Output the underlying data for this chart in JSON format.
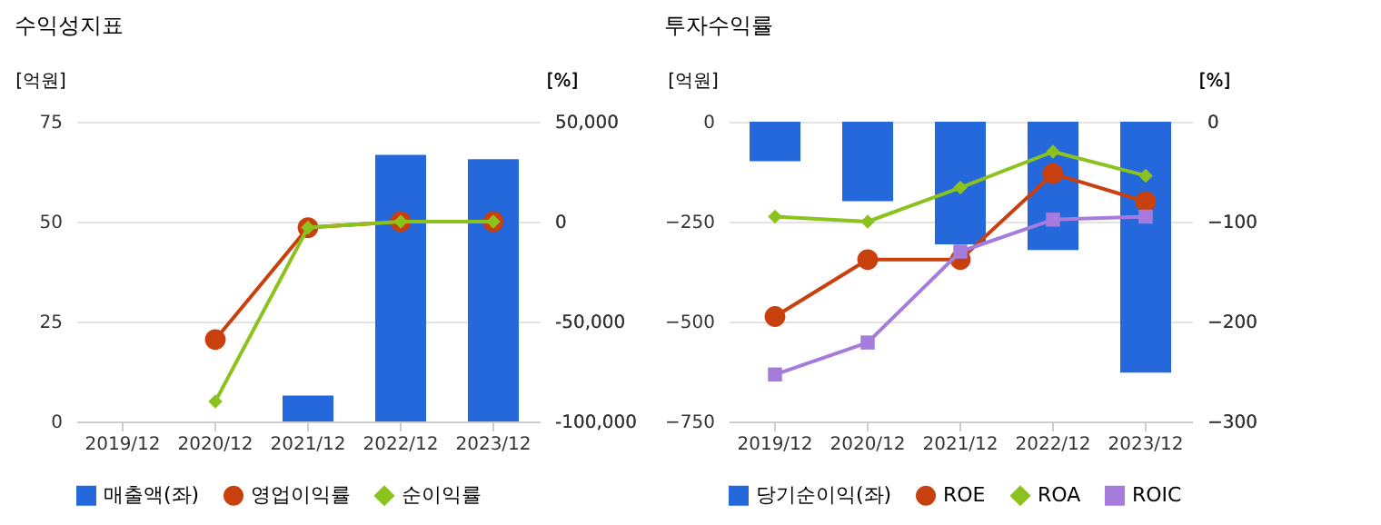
{
  "chart_data": [
    {
      "type": "bar",
      "title": "수익성지표",
      "ylabel": "[억원]",
      "y2label": "[%]",
      "categories": [
        "2019/12",
        "2020/12",
        "2021/12",
        "2022/12",
        "2023/12"
      ],
      "series": [
        {
          "name": "매출액(좌)",
          "color": "#2468dc",
          "values": [
            null,
            null,
            6.5,
            66.7,
            65.6
          ]
        },
        {
          "name": "영업이익률",
          "type": "line",
          "axis": "y2",
          "marker": "circle",
          "color": "#c8400e",
          "values": [
            null,
            -59000,
            -3000,
            0,
            0
          ]
        },
        {
          "name": "순이익률",
          "type": "line",
          "axis": "y2",
          "marker": "diamond",
          "color": "#8cc21e",
          "values": [
            null,
            -90000,
            -3000,
            0,
            0
          ]
        }
      ],
      "ylim": [
        0,
        75
      ],
      "yticks": [
        0,
        25,
        50,
        75
      ],
      "y2lim": [
        -100000,
        50000
      ],
      "y2ticks": [
        {
          "value": 50000,
          "label": "50,000"
        },
        0,
        {
          "value": -50000,
          "label": "-50,000"
        },
        {
          "value": -100000,
          "label": "-100,000"
        }
      ],
      "grid": "y",
      "legend": "bottom"
    },
    {
      "type": "bar",
      "title": "투자수익률",
      "ylabel": "[억원]",
      "y2label": "[%]",
      "categories": [
        "2019/12",
        "2020/12",
        "2021/12",
        "2022/12",
        "2023/12"
      ],
      "series": [
        {
          "name": "당기순이익(좌)",
          "color": "#2468dc",
          "values": [
            -99,
            -199,
            -307,
            -321,
            -628
          ]
        },
        {
          "name": "ROE",
          "type": "line",
          "axis": "y2",
          "marker": "circle",
          "color": "#c8400e",
          "values": [
            -195,
            -138,
            -138,
            -52,
            -80
          ]
        },
        {
          "name": "ROA",
          "type": "line",
          "axis": "y2",
          "marker": "diamond",
          "color": "#8cc21e",
          "values": [
            -95,
            -100,
            -66,
            -30,
            -54
          ]
        },
        {
          "name": "ROIC",
          "type": "line",
          "axis": "y2",
          "marker": "square",
          "color": "#a57cdc",
          "values": [
            -253,
            -221,
            -130,
            -98,
            -95
          ]
        }
      ],
      "ylim": [
        -750,
        0
      ],
      "yticks": [
        -750,
        -500,
        -250,
        0
      ],
      "y2lim": [
        -300,
        0
      ],
      "y2ticks": [
        -300,
        -200,
        -100,
        0
      ],
      "grid": "y",
      "legend": "bottom"
    }
  ]
}
